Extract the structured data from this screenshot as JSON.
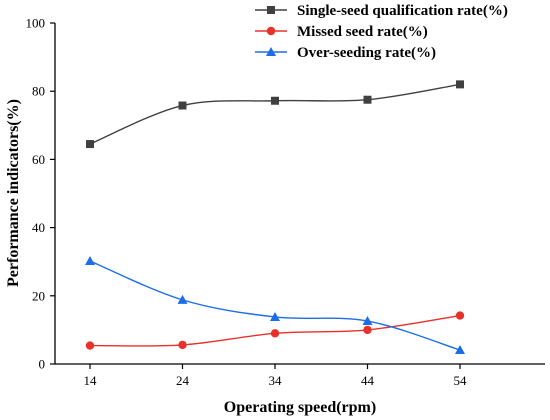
{
  "chart_data": {
    "type": "line",
    "xlabel": "Operating speed(rpm)",
    "ylabel": "Performance indicators(%)",
    "x": [
      14,
      24,
      34,
      44,
      54
    ],
    "xticks": [
      14,
      24,
      34,
      44,
      54
    ],
    "yticks": [
      0,
      20,
      40,
      60,
      80,
      100
    ],
    "ylim": [
      0,
      100
    ],
    "grid": false,
    "legend_position": "top-right",
    "series": [
      {
        "name": "Single-seed qualification rate(%)",
        "values": [
          64.5,
          75.8,
          77.2,
          77.5,
          82.0
        ],
        "color": "#404040",
        "marker": "square"
      },
      {
        "name": "Missed seed rate(%)",
        "values": [
          5.4,
          5.6,
          9.0,
          10.0,
          14.2
        ],
        "color": "#e8312b",
        "marker": "circle"
      },
      {
        "name": "Over-seeding rate(%)",
        "values": [
          30.2,
          18.8,
          13.8,
          12.6,
          4.1
        ],
        "color": "#1c6ee8",
        "marker": "triangle"
      }
    ]
  }
}
